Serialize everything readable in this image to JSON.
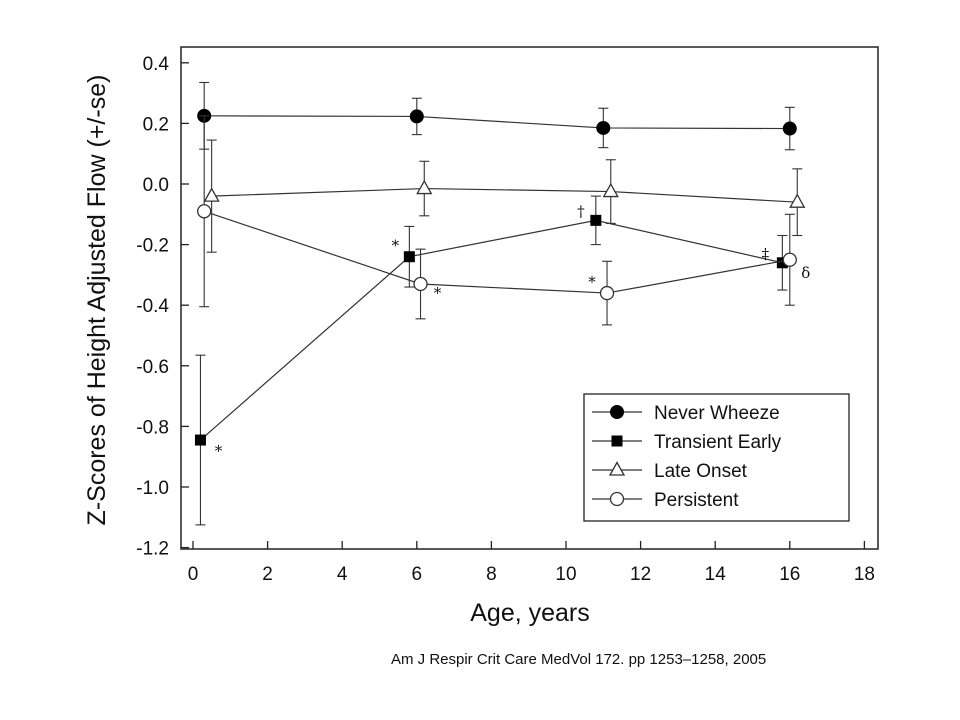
{
  "chart_data": {
    "type": "line",
    "xlabel": "Age, years",
    "ylabel": "Z-Scores of Height Adjusted Flow (+/-se)",
    "xlim": [
      0,
      18
    ],
    "ylim": [
      -1.2,
      0.4
    ],
    "xticks": [
      0,
      2,
      4,
      6,
      8,
      10,
      12,
      14,
      16,
      18
    ],
    "yticks": [
      0.4,
      0.2,
      0.0,
      -0.2,
      -0.4,
      -0.6,
      -0.8,
      -1.0,
      -1.2
    ],
    "ytick_labels": [
      "0.4",
      "0.2",
      "0.0",
      "-0.2",
      "-0.4",
      "-0.6",
      "-0.8",
      "-1.0",
      "-1.2"
    ],
    "xtick_labels": [
      "0",
      "2",
      "4",
      "6",
      "8",
      "10",
      "12",
      "14",
      "16",
      "18"
    ],
    "grid": false,
    "legend_position": "bottom-right",
    "series": [
      {
        "name": "Never Wheeze",
        "marker": "filled-circle",
        "x": [
          0.3,
          6.0,
          11.0,
          16.0
        ],
        "y": [
          0.225,
          0.223,
          0.185,
          0.183
        ],
        "err": [
          0.11,
          0.06,
          0.065,
          0.07
        ],
        "annotations": [
          "",
          "",
          "",
          ""
        ]
      },
      {
        "name": "Transient Early",
        "marker": "filled-square",
        "x": [
          0.2,
          5.8,
          10.8,
          15.8
        ],
        "y": [
          -0.845,
          -0.24,
          -0.12,
          -0.26
        ],
        "err": [
          0.28,
          0.1,
          0.08,
          0.09
        ],
        "annotations": [
          "*",
          "*",
          "†",
          "‡"
        ]
      },
      {
        "name": "Late Onset",
        "marker": "open-triangle",
        "x": [
          0.5,
          6.2,
          11.2,
          16.2
        ],
        "y": [
          -0.04,
          -0.015,
          -0.025,
          -0.06
        ],
        "err": [
          0.185,
          0.09,
          0.105,
          0.11
        ],
        "annotations": [
          "",
          "",
          "",
          ""
        ]
      },
      {
        "name": "Persistent",
        "marker": "open-circle",
        "x": [
          0.3,
          6.1,
          11.1,
          16.0
        ],
        "y": [
          -0.09,
          -0.33,
          -0.36,
          -0.25
        ],
        "err": [
          0.315,
          0.115,
          0.105,
          0.15
        ],
        "annotations": [
          "",
          "*",
          "*",
          "δ"
        ]
      }
    ]
  },
  "citation": "Am J Respir Crit Care MedVol 172. pp 1253–1258, 2005"
}
